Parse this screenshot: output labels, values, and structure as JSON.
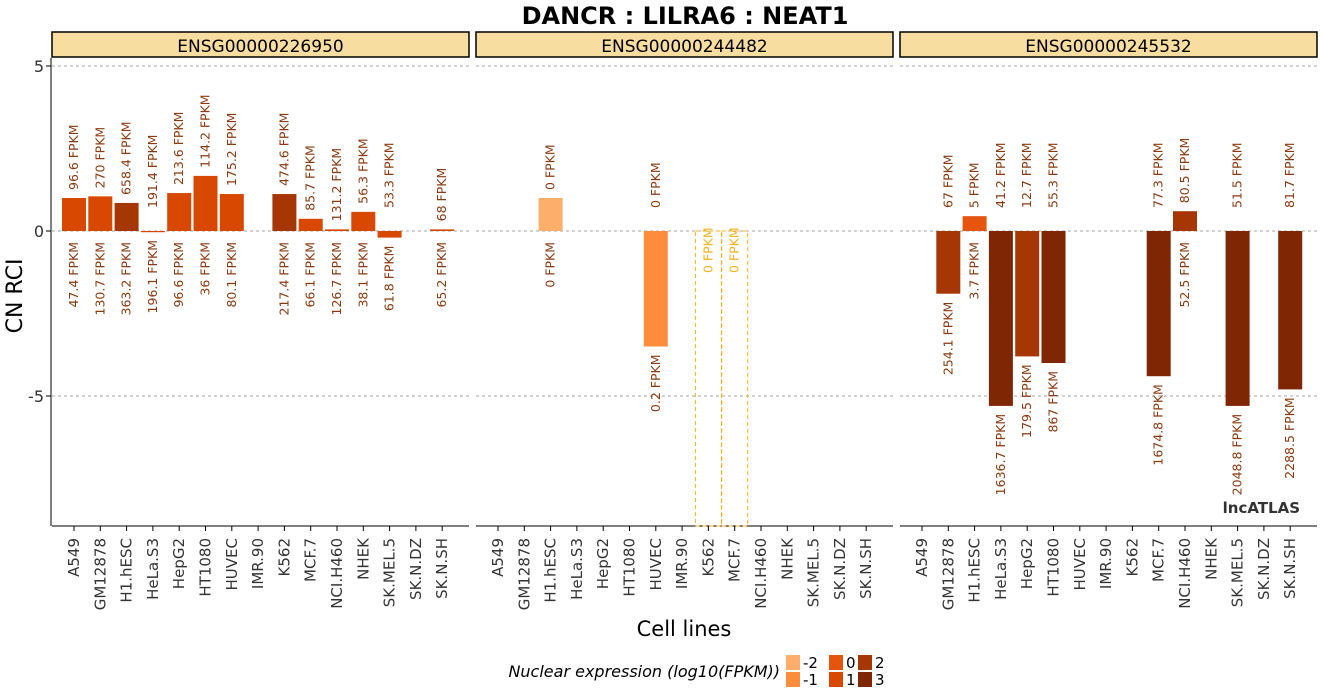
{
  "chart_data": {
    "type": "bar",
    "title": "DANCR : LILRA6 : NEAT1",
    "xlabel": "Cell lines",
    "ylabel": "CN RCI",
    "ylim": [
      -8.9,
      5.2
    ],
    "yticks": [
      5,
      0,
      -5
    ],
    "ytick_labels": [
      "5",
      "0",
      "-5"
    ],
    "grid": "dashed horizontal at ticks",
    "watermark": "lncATLAS",
    "categories": [
      "A549",
      "GM12878",
      "H1.hESC",
      "HeLa.S3",
      "HepG2",
      "HT1080",
      "HUVEC",
      "IMR.90",
      "K562",
      "MCF.7",
      "NCI.H460",
      "NHEK",
      "SK.MEL.5",
      "SK.N.DZ",
      "SK.N.SH"
    ],
    "legend": {
      "title": "Nuclear expression (log10(FPKM))",
      "position": "bottom",
      "items": [
        {
          "label": "-2",
          "color": "#FDAE6B"
        },
        {
          "label": "-1",
          "color": "#FD8D3C"
        },
        {
          "label": "0",
          "color": "#E6550D"
        },
        {
          "label": "1",
          "color": "#D94801"
        },
        {
          "label": "2",
          "color": "#A63603"
        },
        {
          "label": "3",
          "color": "#7F2704"
        }
      ]
    },
    "panels": [
      {
        "name": "ENSG00000226950",
        "values": [
          1.0,
          1.05,
          0.85,
          -0.03,
          1.15,
          1.67,
          1.12,
          null,
          1.12,
          0.37,
          0.05,
          0.58,
          -0.2,
          null,
          0.05
        ],
        "colors": [
          "#D94801",
          "#D94801",
          "#A63603",
          "#D94801",
          "#D94801",
          "#D94801",
          "#D94801",
          null,
          "#A63603",
          "#D94801",
          "#D94801",
          "#D94801",
          "#D94801",
          null,
          "#D94801"
        ],
        "top_labels": [
          "96.6 FPKM",
          "270 FPKM",
          "658.4 FPKM",
          "191.4 FPKM",
          "213.6 FPKM",
          "114.2 FPKM",
          "175.2 FPKM",
          "",
          "474.6 FPKM",
          "85.7 FPKM",
          "131.2 FPKM",
          "56.3 FPKM",
          "53.3 FPKM",
          "",
          "68 FPKM"
        ],
        "bottom_labels": [
          "47.4 FPKM",
          "130.7 FPKM",
          "363.2 FPKM",
          "196.1 FPKM",
          "96.6 FPKM",
          "36 FPKM",
          "80.1 FPKM",
          "",
          "217.4 FPKM",
          "66.1 FPKM",
          "126.7 FPKM",
          "38.1 FPKM",
          "61.8 FPKM",
          "",
          "65.2 FPKM"
        ],
        "label_color": "#8B3A0F"
      },
      {
        "name": "ENSG00000244482",
        "values": [
          null,
          null,
          1.0,
          null,
          null,
          null,
          -3.5,
          null,
          null,
          null,
          null,
          null,
          null,
          null,
          null
        ],
        "colors": [
          null,
          null,
          "#FDAE6B",
          null,
          null,
          null,
          "#FD8D3C",
          null,
          null,
          null,
          null,
          null,
          null,
          null,
          null
        ],
        "top_labels": [
          "",
          "",
          "0 FPKM",
          "",
          "",
          "",
          "0 FPKM",
          "",
          "",
          "",
          "",
          "",
          "",
          "",
          ""
        ],
        "bottom_labels": [
          "",
          "",
          "0 FPKM",
          "",
          "",
          "",
          "0.2 FPKM",
          "",
          "",
          "",
          "",
          "",
          "",
          "",
          ""
        ],
        "label_color": "#8B3A0F",
        "zero_expression": {
          "categories": [
            "K562",
            "MCF.7"
          ],
          "labels": [
            "0 FPKM",
            "0 FPKM"
          ],
          "color": "#F5B21B"
        }
      },
      {
        "name": "ENSG00000245532",
        "values": [
          null,
          -1.9,
          0.45,
          -5.3,
          -3.8,
          -4.0,
          null,
          null,
          null,
          -4.4,
          0.6,
          null,
          -5.3,
          null,
          -4.8
        ],
        "colors": [
          null,
          "#A63603",
          "#E6550D",
          "#7F2704",
          "#A63603",
          "#7F2704",
          null,
          null,
          null,
          "#7F2704",
          "#A63603",
          null,
          "#7F2704",
          null,
          "#7F2704"
        ],
        "top_labels": [
          "",
          "67 FPKM",
          "5 FPKM",
          "41.2 FPKM",
          "12.7 FPKM",
          "55.3 FPKM",
          "",
          "",
          "",
          "77.3 FPKM",
          "80.5 FPKM",
          "",
          "51.5 FPKM",
          "",
          "81.7 FPKM"
        ],
        "bottom_labels": [
          "",
          "254.1 FPKM",
          "3.7 FPKM",
          "1636.7 FPKM",
          "179.5 FPKM",
          "867 FPKM",
          "",
          "",
          "",
          "1674.8 FPKM",
          "52.5 FPKM",
          "",
          "2048.8 FPKM",
          "",
          "2288.5 FPKM"
        ],
        "label_color": "#8B3A0F"
      }
    ]
  }
}
